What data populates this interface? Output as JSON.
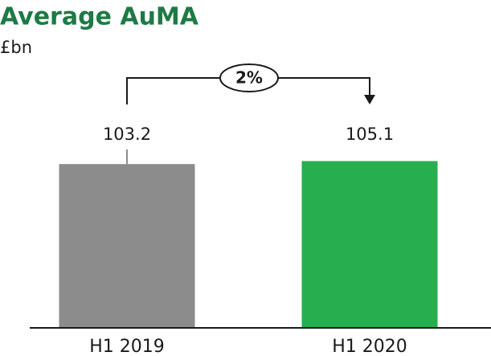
{
  "chart_data": {
    "type": "bar",
    "title": "Average AuMA",
    "subtitle": "£bn",
    "categories": [
      "H1 2019",
      "H1 2020"
    ],
    "values": [
      103.2,
      105.1
    ],
    "colors": [
      "#8c8c8c",
      "#27ae4f"
    ],
    "annotation": "2%",
    "ylim": [
      0,
      120
    ]
  }
}
